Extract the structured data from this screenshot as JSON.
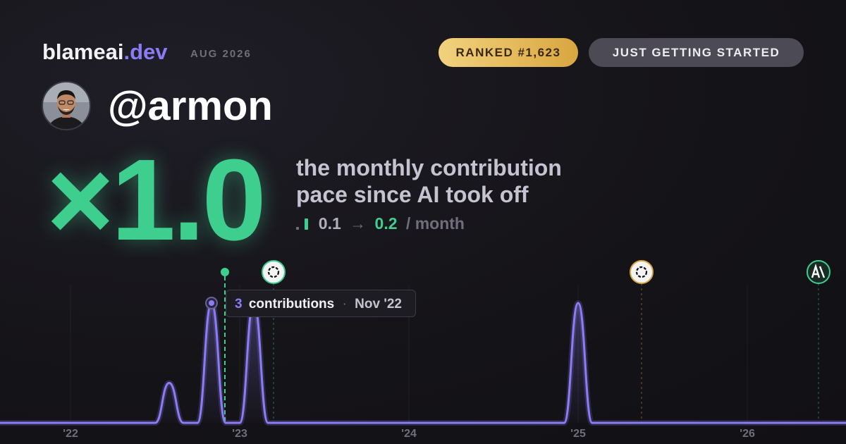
{
  "header": {
    "brand": "blameai",
    "brand_suffix": ".dev",
    "date": "AUG 2026",
    "rank": "RANKED #1,623",
    "status": "JUST GETTING STARTED"
  },
  "profile": {
    "username": "@armon"
  },
  "headline": {
    "multiplier": "×1.0",
    "description": [
      "the monthly contribution",
      "pace since AI took off"
    ],
    "rate_before": "0.1",
    "arrow": "→",
    "rate_after": "0.2",
    "rate_unit": "/ month"
  },
  "tooltip": {
    "count": "3",
    "label": "contributions",
    "separator": "·",
    "date": "Nov '22"
  },
  "chart_data": {
    "type": "line",
    "color": "#8b7cf6",
    "x": [
      2021.583,
      2021.667,
      2021.75,
      2021.833,
      2021.917,
      2022,
      2022.083,
      2022.167,
      2022.25,
      2022.333,
      2022.417,
      2022.5,
      2022.583,
      2022.667,
      2022.75,
      2022.833,
      2022.917,
      2023,
      2023.083,
      2023.167,
      2023.25,
      2023.333,
      2023.417,
      2023.5,
      2023.583,
      2023.667,
      2023.75,
      2023.833,
      2023.917,
      2024,
      2024.083,
      2024.167,
      2024.25,
      2024.333,
      2024.417,
      2024.5,
      2024.583,
      2024.667,
      2024.75,
      2024.833,
      2024.917,
      2025,
      2025.083,
      2025.167,
      2025.25,
      2025.333,
      2025.417,
      2025.5,
      2025.583,
      2025.667,
      2025.75,
      2025.833,
      2025.917,
      2026,
      2026.083,
      2026.167,
      2026.25,
      2026.333,
      2026.417,
      2026.5,
      2026.583
    ],
    "values": [
      0,
      0,
      0,
      0,
      0,
      0,
      0,
      0,
      0,
      0,
      0,
      0,
      1,
      0,
      0,
      3,
      0,
      0,
      3,
      0,
      0,
      0,
      0,
      0,
      0,
      0,
      0,
      0,
      0,
      0,
      0,
      0,
      0,
      0,
      0,
      0,
      0,
      0,
      0,
      0,
      0,
      3,
      0,
      0,
      0,
      0,
      0,
      0,
      0,
      0,
      0,
      0,
      0,
      0,
      0,
      0,
      0,
      0,
      0,
      0,
      0
    ],
    "xlim": [
      2021.583,
      2026.583
    ],
    "xticks": [
      {
        "value": 2022,
        "label": "'22"
      },
      {
        "value": 2023,
        "label": "'23"
      },
      {
        "value": 2024,
        "label": "'24"
      },
      {
        "value": 2025,
        "label": "'25"
      },
      {
        "value": 2026,
        "label": "'26"
      }
    ],
    "ylim": [
      0,
      3
    ],
    "grid": true
  }
}
